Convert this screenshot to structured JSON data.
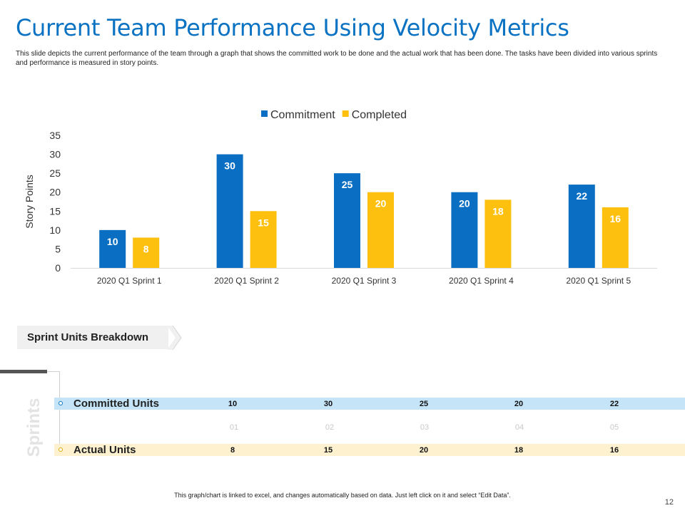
{
  "slide": {
    "title": "Current Team Performance Using Velocity Metrics",
    "description": "This slide depicts the current performance of the team through a graph that shows the committed work to be done and the actual work that has been done. The tasks have been divided into various sprints and performance is measured in story points.",
    "footer": "This graph/chart is linked to excel, and changes automatically based on data. Just left click on it and select “Edit Data”.",
    "page_number": "12"
  },
  "chart_data": {
    "type": "bar",
    "title": "",
    "xlabel": "",
    "ylabel": "Story Points",
    "ylim": [
      0,
      35
    ],
    "yticks": [
      0,
      5,
      10,
      15,
      20,
      25,
      30,
      35
    ],
    "grid": false,
    "legend_position": "top-center",
    "categories": [
      "2020 Q1 Sprint 1",
      "2020 Q1 Sprint 2",
      "2020 Q1 Sprint 3",
      "2020 Q1 Sprint 4",
      "2020 Q1 Sprint 5"
    ],
    "series": [
      {
        "name": "Commitment",
        "color": "#0a6fc2",
        "values": [
          10,
          30,
          25,
          20,
          22
        ]
      },
      {
        "name": "Completed",
        "color": "#fdc00f",
        "values": [
          8,
          15,
          20,
          18,
          16
        ]
      }
    ]
  },
  "breakdown": {
    "heading": "Sprint Units Breakdown",
    "side_label": "Sprints",
    "committed_label": "Committed Units",
    "actual_label": "Actual Units",
    "sprint_numbers": [
      "01",
      "02",
      "03",
      "04",
      "05"
    ],
    "committed_values": [
      "10",
      "30",
      "25",
      "20",
      "22"
    ],
    "actual_values": [
      "8",
      "15",
      "20",
      "18",
      "16"
    ],
    "colors": {
      "committed_band": "#c5e4f8",
      "actual_band": "#fdf1cf"
    }
  }
}
